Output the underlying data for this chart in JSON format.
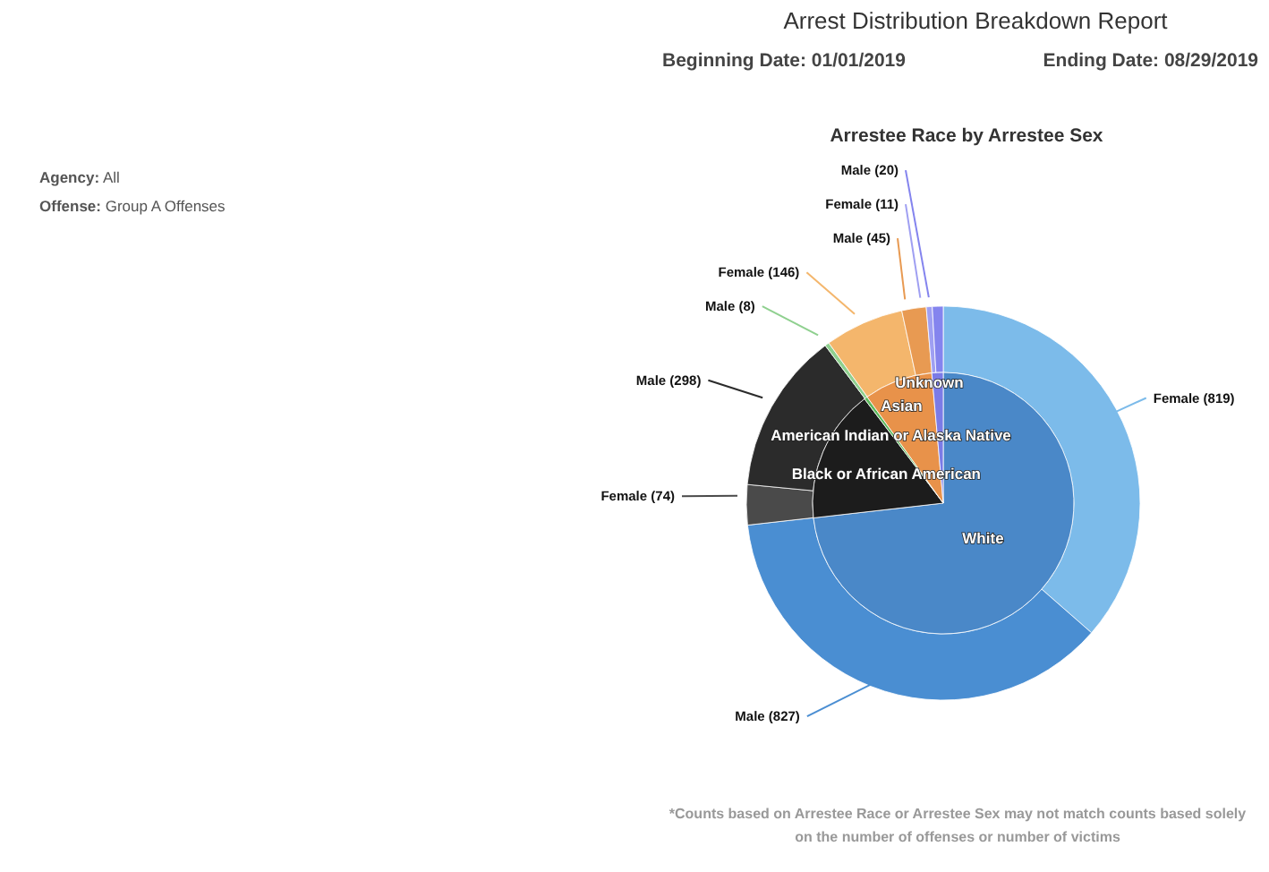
{
  "chart_data": [
    {
      "type": "pie",
      "title": "Arrest Distribution Breakdown Report",
      "subtitle": "Arrestee Race by Arrestee Sex",
      "legend": false,
      "annotations": [
        "Beginning Date: 01/01/2019",
        "Ending Date: 08/29/2019",
        "Agency: All",
        "Offense: Group A Offenses",
        "*Counts based on Arrestee Race or Arrestee Sex may not match counts based solely on the number of offenses or number of victims"
      ],
      "categories": [
        "White",
        "Black or African American",
        "American Indian or Alaska Native",
        "Asian",
        "Unknown"
      ],
      "values": [
        73.2,
        16.5,
        0.4,
        8.5,
        1.4
      ],
      "colors": [
        "#4a88c8",
        "#1c1c1c",
        "#5cb85c",
        "#e8924a",
        "#7b7be6"
      ]
    },
    {
      "type": "donut",
      "legend": false,
      "categories": [
        "Female (819)",
        "Male (827)",
        "Female (74)",
        "Male (298)",
        "Male (8)",
        "Female (146)",
        "Male (45)",
        "Female (11)",
        "Male (20)"
      ],
      "values": [
        819,
        827,
        74,
        298,
        8,
        146,
        45,
        11,
        20
      ],
      "colors": [
        "#7cbbea",
        "#4a8ed2",
        "#4a4a4a",
        "#2b2b2b",
        "#8fd08f",
        "#f4b66c",
        "#e89a52",
        "#9f9ff2",
        "#8484ee"
      ]
    }
  ]
}
